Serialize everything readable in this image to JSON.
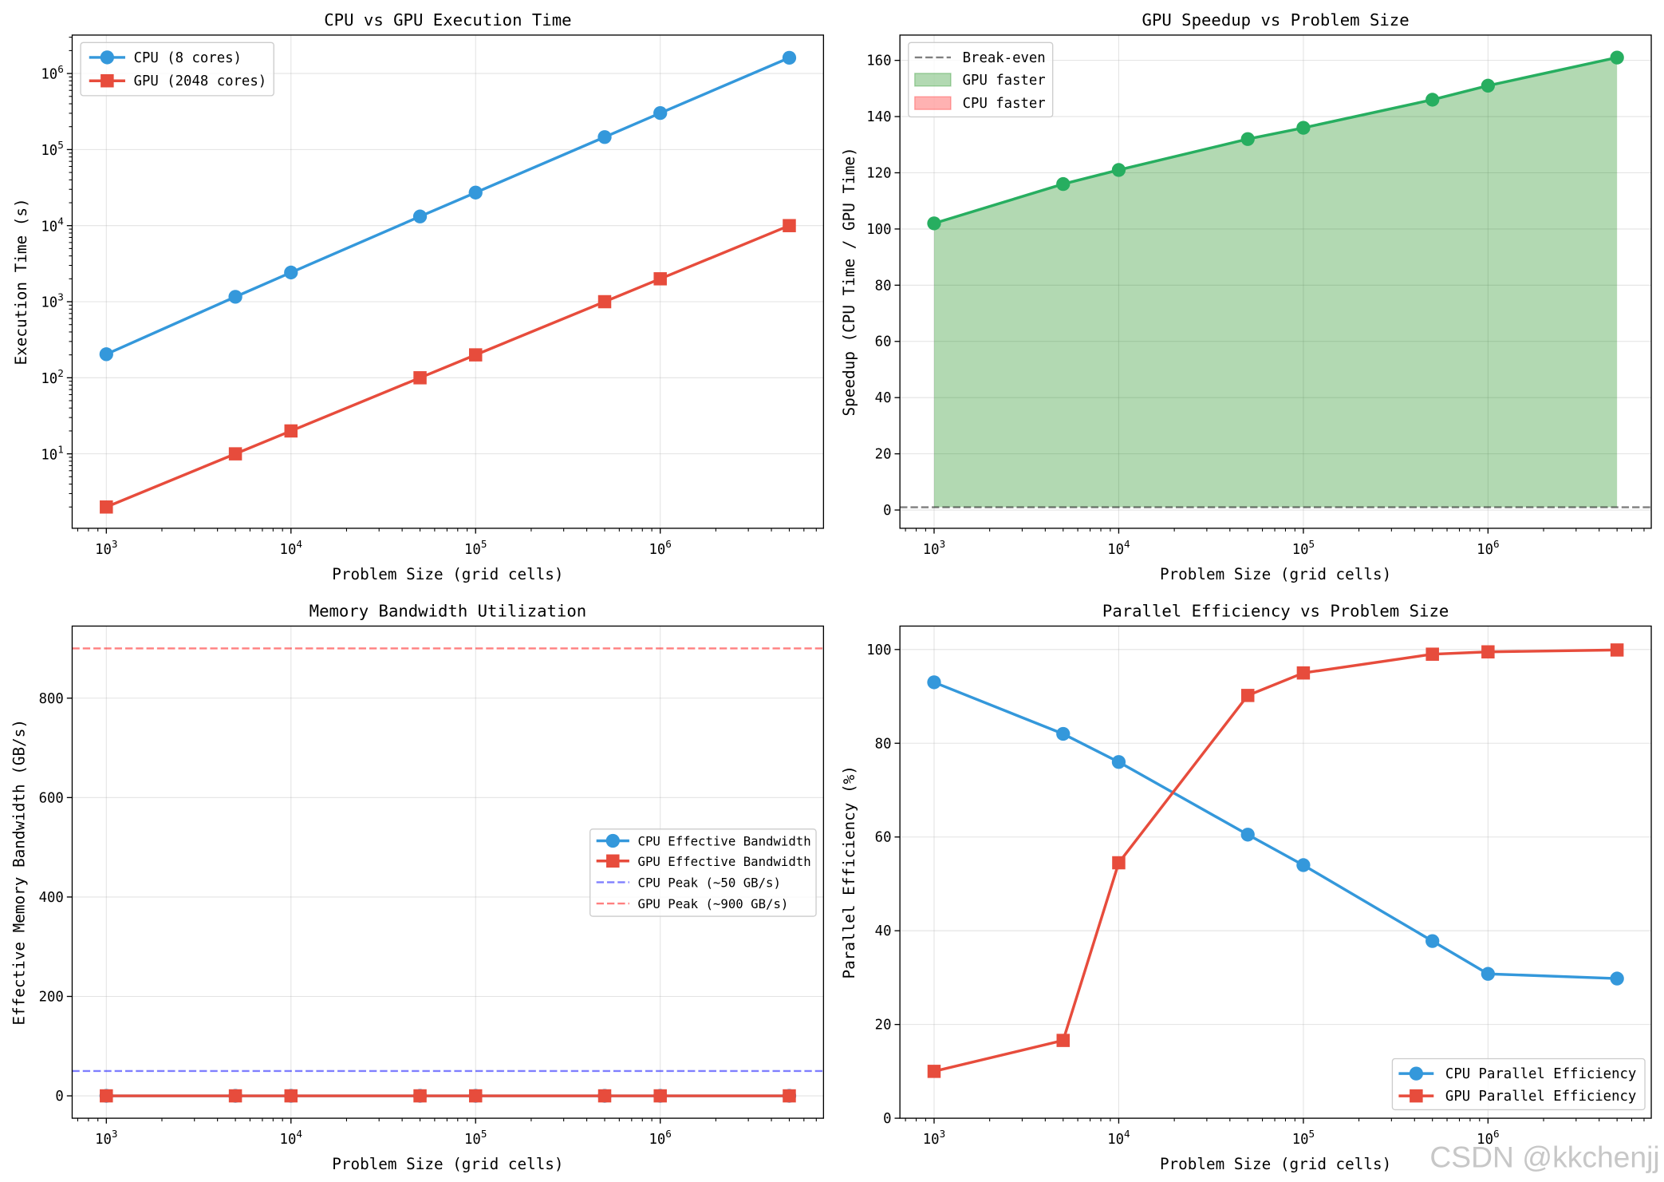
{
  "watermark": "CSDN @kkchenjj",
  "chart_data": [
    {
      "type": "line",
      "title": "CPU vs GPU Execution Time",
      "xlabel": "Problem Size (grid cells)",
      "ylabel": "Execution Time (s)",
      "xscale": "log",
      "yscale": "log",
      "xlim": [
        653,
        7660000
      ],
      "ylim": [
        1.05,
        3200000
      ],
      "xticks": [
        {
          "value": 1000,
          "base": "10",
          "exp": "3"
        },
        {
          "value": 10000,
          "base": "10",
          "exp": "4"
        },
        {
          "value": 100000,
          "base": "10",
          "exp": "5"
        },
        {
          "value": 1000000,
          "base": "10",
          "exp": "6"
        }
      ],
      "yticks": [
        {
          "value": 10,
          "base": "10",
          "exp": "1"
        },
        {
          "value": 100,
          "base": "10",
          "exp": "2"
        },
        {
          "value": 1000,
          "base": "10",
          "exp": "3"
        },
        {
          "value": 10000,
          "base": "10",
          "exp": "4"
        },
        {
          "value": 100000,
          "base": "10",
          "exp": "5"
        },
        {
          "value": 1000000,
          "base": "10",
          "exp": "6"
        }
      ],
      "grid": true,
      "legend": "upper left",
      "x": [
        1000,
        5000,
        10000,
        50000,
        100000,
        500000,
        1000000,
        5000000
      ],
      "series": [
        {
          "name": "CPU (8 cores)",
          "values": [
            204,
            1160,
            2420,
            13200,
            27200,
            146000,
            302000,
            1610000
          ],
          "color": "#3498db",
          "marker": "circle"
        },
        {
          "name": "GPU (2048 cores)",
          "values": [
            2,
            10,
            20,
            100,
            200,
            1000,
            2000,
            10000
          ],
          "color": "#e74c3c",
          "marker": "square"
        }
      ]
    },
    {
      "type": "area",
      "title": "GPU Speedup vs Problem Size",
      "xlabel": "Problem Size (grid cells)",
      "ylabel": "Speedup (CPU Time / GPU Time)",
      "xscale": "log",
      "yscale": "linear",
      "xlim": [
        653,
        7660000
      ],
      "ylim": [
        -6.5,
        169
      ],
      "xticks": [
        {
          "value": 1000,
          "base": "10",
          "exp": "3"
        },
        {
          "value": 10000,
          "base": "10",
          "exp": "4"
        },
        {
          "value": 100000,
          "base": "10",
          "exp": "5"
        },
        {
          "value": 1000000,
          "base": "10",
          "exp": "6"
        }
      ],
      "yticks": [
        0,
        20,
        40,
        60,
        80,
        100,
        120,
        140,
        160
      ],
      "grid": true,
      "legend": "upper left",
      "x": [
        1000,
        5000,
        10000,
        50000,
        100000,
        500000,
        1000000,
        5000000
      ],
      "series": [
        {
          "values": [
            102,
            116,
            121,
            132,
            136,
            146,
            151,
            161
          ],
          "color": "#27ae60",
          "marker": "circle"
        }
      ],
      "reference_lines": [
        {
          "label": "Break-even",
          "y": 1,
          "color": "#000000",
          "opacity": 0.5,
          "style": "dashed"
        }
      ],
      "fill_baseline": 1,
      "fills": [
        {
          "label": "GPU faster",
          "color": "#008000",
          "opacity": 0.3
        },
        {
          "label": "CPU faster",
          "color": "#ff0000",
          "opacity": 0.3
        }
      ]
    },
    {
      "type": "line",
      "title": "Memory Bandwidth Utilization",
      "xlabel": "Problem Size (grid cells)",
      "ylabel": "Effective Memory Bandwidth (GB/s)",
      "xscale": "log",
      "yscale": "linear",
      "xlim": [
        653,
        7660000
      ],
      "ylim": [
        -45,
        945
      ],
      "xticks": [
        {
          "value": 1000,
          "base": "10",
          "exp": "3"
        },
        {
          "value": 10000,
          "base": "10",
          "exp": "4"
        },
        {
          "value": 100000,
          "base": "10",
          "exp": "5"
        },
        {
          "value": 1000000,
          "base": "10",
          "exp": "6"
        }
      ],
      "yticks": [
        0,
        200,
        400,
        600,
        800
      ],
      "grid": true,
      "legend": "center right",
      "x": [
        1000,
        5000,
        10000,
        50000,
        100000,
        500000,
        1000000,
        5000000
      ],
      "series": [
        {
          "name": "CPU Effective Bandwidth",
          "values": [
            0,
            0,
            0,
            0,
            0,
            0,
            0,
            0
          ],
          "color": "#3498db",
          "marker": "circle"
        },
        {
          "name": "GPU Effective Bandwidth",
          "values": [
            0,
            0,
            0,
            0,
            0,
            0,
            0,
            0
          ],
          "color": "#e74c3c",
          "marker": "square"
        }
      ],
      "reference_lines": [
        {
          "label": "CPU Peak (~50 GB/s)",
          "y": 50,
          "color": "#0000ff",
          "opacity": 0.5,
          "style": "dashed"
        },
        {
          "label": "GPU Peak (~900 GB/s)",
          "y": 900,
          "color": "#ff0000",
          "opacity": 0.5,
          "style": "dashed"
        }
      ]
    },
    {
      "type": "line",
      "title": "Parallel Efficiency vs Problem Size",
      "xlabel": "Problem Size (grid cells)",
      "ylabel": "Parallel Efficiency (%)",
      "xscale": "log",
      "yscale": "linear",
      "xlim": [
        653,
        7660000
      ],
      "ylim": [
        0,
        105
      ],
      "xticks": [
        {
          "value": 1000,
          "base": "10",
          "exp": "3"
        },
        {
          "value": 10000,
          "base": "10",
          "exp": "4"
        },
        {
          "value": 100000,
          "base": "10",
          "exp": "5"
        },
        {
          "value": 1000000,
          "base": "10",
          "exp": "6"
        }
      ],
      "yticks": [
        0,
        20,
        40,
        60,
        80,
        100
      ],
      "grid": true,
      "legend": "lower right",
      "x": [
        1000,
        5000,
        10000,
        50000,
        100000,
        500000,
        1000000,
        5000000
      ],
      "series": [
        {
          "name": "CPU Parallel Efficiency",
          "values": [
            93,
            82,
            76,
            60.5,
            54,
            37.8,
            30.8,
            29.8
          ],
          "color": "#3498db",
          "marker": "circle"
        },
        {
          "name": "GPU Parallel Efficiency",
          "values": [
            10,
            16.6,
            54.5,
            90.2,
            95,
            99,
            99.5,
            99.9
          ],
          "color": "#e74c3c",
          "marker": "square"
        }
      ]
    }
  ]
}
